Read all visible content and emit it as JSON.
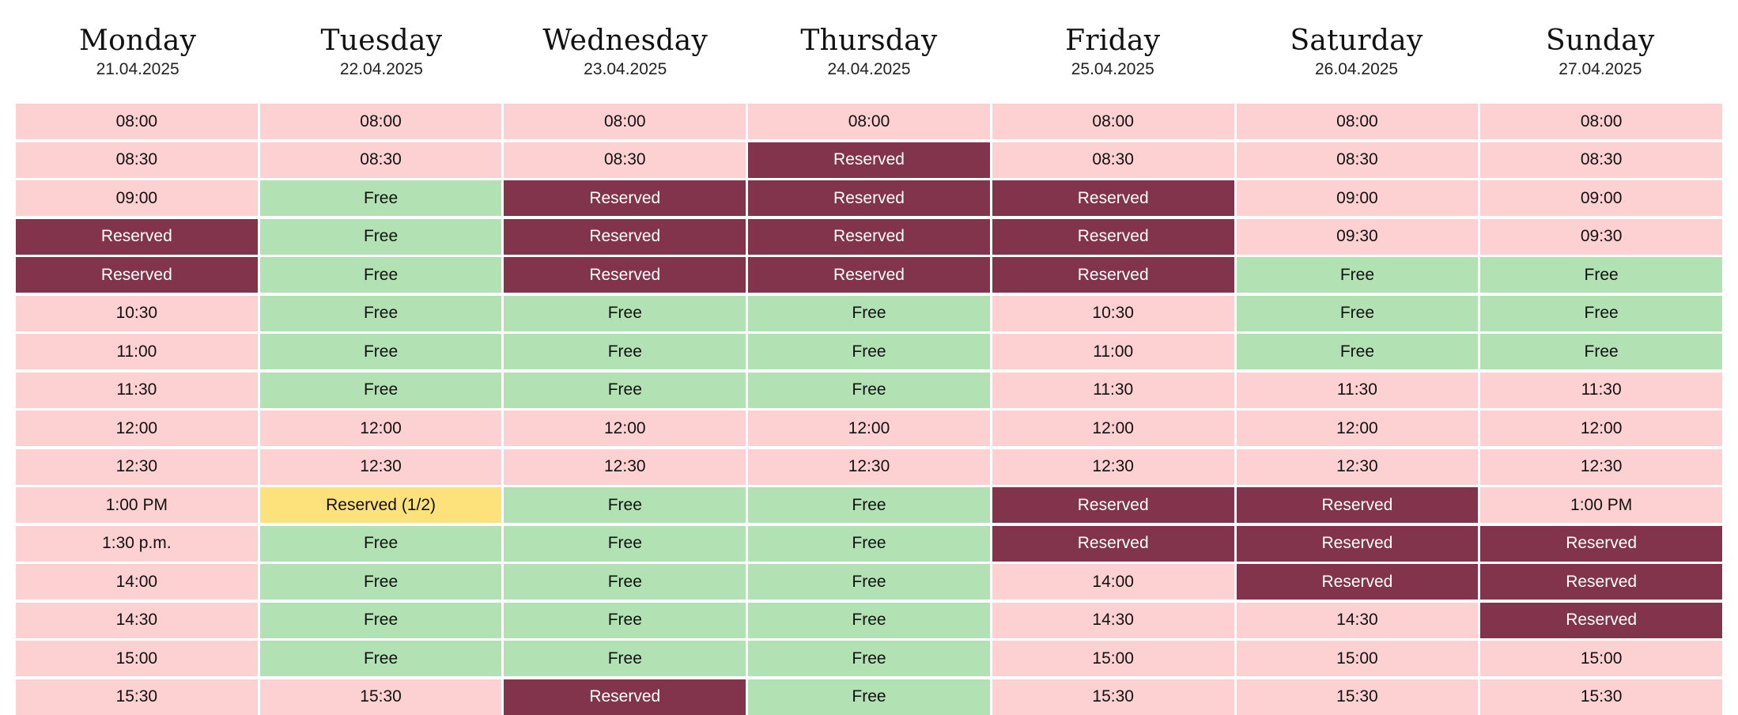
{
  "days": [
    {
      "name": "Monday",
      "date": "21.04.2025",
      "slots": [
        {
          "label": "08:00",
          "status": "open"
        },
        {
          "label": "08:30",
          "status": "open"
        },
        {
          "label": "09:00",
          "status": "open"
        },
        {
          "label": "Reserved",
          "status": "reserved"
        },
        {
          "label": "Reserved",
          "status": "reserved"
        },
        {
          "label": "10:30",
          "status": "open"
        },
        {
          "label": "11:00",
          "status": "open"
        },
        {
          "label": "11:30",
          "status": "open"
        },
        {
          "label": "12:00",
          "status": "open"
        },
        {
          "label": "12:30",
          "status": "open"
        },
        {
          "label": "1:00 PM",
          "status": "open"
        },
        {
          "label": "1:30 p.m.",
          "status": "open"
        },
        {
          "label": "14:00",
          "status": "open"
        },
        {
          "label": "14:30",
          "status": "open"
        },
        {
          "label": "15:00",
          "status": "open"
        },
        {
          "label": "15:30",
          "status": "open"
        }
      ]
    },
    {
      "name": "Tuesday",
      "date": "22.04.2025",
      "slots": [
        {
          "label": "08:00",
          "status": "open"
        },
        {
          "label": "08:30",
          "status": "open"
        },
        {
          "label": "Free",
          "status": "free"
        },
        {
          "label": "Free",
          "status": "free"
        },
        {
          "label": "Free",
          "status": "free"
        },
        {
          "label": "Free",
          "status": "free"
        },
        {
          "label": "Free",
          "status": "free"
        },
        {
          "label": "Free",
          "status": "free"
        },
        {
          "label": "12:00",
          "status": "open"
        },
        {
          "label": "12:30",
          "status": "open"
        },
        {
          "label": "Reserved (1/2)",
          "status": "partial"
        },
        {
          "label": "Free",
          "status": "free"
        },
        {
          "label": "Free",
          "status": "free"
        },
        {
          "label": "Free",
          "status": "free"
        },
        {
          "label": "Free",
          "status": "free"
        },
        {
          "label": "15:30",
          "status": "open"
        }
      ]
    },
    {
      "name": "Wednesday",
      "date": "23.04.2025",
      "slots": [
        {
          "label": "08:00",
          "status": "open"
        },
        {
          "label": "08:30",
          "status": "open"
        },
        {
          "label": "Reserved",
          "status": "reserved"
        },
        {
          "label": "Reserved",
          "status": "reserved"
        },
        {
          "label": "Reserved",
          "status": "reserved"
        },
        {
          "label": "Free",
          "status": "free"
        },
        {
          "label": "Free",
          "status": "free"
        },
        {
          "label": "Free",
          "status": "free"
        },
        {
          "label": "12:00",
          "status": "open"
        },
        {
          "label": "12:30",
          "status": "open"
        },
        {
          "label": "Free",
          "status": "free"
        },
        {
          "label": "Free",
          "status": "free"
        },
        {
          "label": "Free",
          "status": "free"
        },
        {
          "label": "Free",
          "status": "free"
        },
        {
          "label": "Free",
          "status": "free"
        },
        {
          "label": "Reserved",
          "status": "reserved"
        }
      ]
    },
    {
      "name": "Thursday",
      "date": "24.04.2025",
      "slots": [
        {
          "label": "08:00",
          "status": "open"
        },
        {
          "label": "Reserved",
          "status": "reserved"
        },
        {
          "label": "Reserved",
          "status": "reserved"
        },
        {
          "label": "Reserved",
          "status": "reserved"
        },
        {
          "label": "Reserved",
          "status": "reserved"
        },
        {
          "label": "Free",
          "status": "free"
        },
        {
          "label": "Free",
          "status": "free"
        },
        {
          "label": "Free",
          "status": "free"
        },
        {
          "label": "12:00",
          "status": "open"
        },
        {
          "label": "12:30",
          "status": "open"
        },
        {
          "label": "Free",
          "status": "free"
        },
        {
          "label": "Free",
          "status": "free"
        },
        {
          "label": "Free",
          "status": "free"
        },
        {
          "label": "Free",
          "status": "free"
        },
        {
          "label": "Free",
          "status": "free"
        },
        {
          "label": "Free",
          "status": "free"
        }
      ]
    },
    {
      "name": "Friday",
      "date": "25.04.2025",
      "slots": [
        {
          "label": "08:00",
          "status": "open"
        },
        {
          "label": "08:30",
          "status": "open"
        },
        {
          "label": "Reserved",
          "status": "reserved"
        },
        {
          "label": "Reserved",
          "status": "reserved"
        },
        {
          "label": "Reserved",
          "status": "reserved"
        },
        {
          "label": "10:30",
          "status": "open"
        },
        {
          "label": "11:00",
          "status": "open"
        },
        {
          "label": "11:30",
          "status": "open"
        },
        {
          "label": "12:00",
          "status": "open"
        },
        {
          "label": "12:30",
          "status": "open"
        },
        {
          "label": "Reserved",
          "status": "reserved"
        },
        {
          "label": "Reserved",
          "status": "reserved"
        },
        {
          "label": "14:00",
          "status": "open"
        },
        {
          "label": "14:30",
          "status": "open"
        },
        {
          "label": "15:00",
          "status": "open"
        },
        {
          "label": "15:30",
          "status": "open"
        }
      ]
    },
    {
      "name": "Saturday",
      "date": "26.04.2025",
      "slots": [
        {
          "label": "08:00",
          "status": "open"
        },
        {
          "label": "08:30",
          "status": "open"
        },
        {
          "label": "09:00",
          "status": "open"
        },
        {
          "label": "09:30",
          "status": "open"
        },
        {
          "label": "Free",
          "status": "free"
        },
        {
          "label": "Free",
          "status": "free"
        },
        {
          "label": "Free",
          "status": "free"
        },
        {
          "label": "11:30",
          "status": "open"
        },
        {
          "label": "12:00",
          "status": "open"
        },
        {
          "label": "12:30",
          "status": "open"
        },
        {
          "label": "Reserved",
          "status": "reserved"
        },
        {
          "label": "Reserved",
          "status": "reserved"
        },
        {
          "label": "Reserved",
          "status": "reserved"
        },
        {
          "label": "14:30",
          "status": "open"
        },
        {
          "label": "15:00",
          "status": "open"
        },
        {
          "label": "15:30",
          "status": "open"
        }
      ]
    },
    {
      "name": "Sunday",
      "date": "27.04.2025",
      "slots": [
        {
          "label": "08:00",
          "status": "open"
        },
        {
          "label": "08:30",
          "status": "open"
        },
        {
          "label": "09:00",
          "status": "open"
        },
        {
          "label": "09:30",
          "status": "open"
        },
        {
          "label": "Free",
          "status": "free"
        },
        {
          "label": "Free",
          "status": "free"
        },
        {
          "label": "Free",
          "status": "free"
        },
        {
          "label": "11:30",
          "status": "open"
        },
        {
          "label": "12:00",
          "status": "open"
        },
        {
          "label": "12:30",
          "status": "open"
        },
        {
          "label": "1:00 PM",
          "status": "open"
        },
        {
          "label": "Reserved",
          "status": "reserved"
        },
        {
          "label": "Reserved",
          "status": "reserved"
        },
        {
          "label": "Reserved",
          "status": "reserved"
        },
        {
          "label": "15:00",
          "status": "open"
        },
        {
          "label": "15:30",
          "status": "open"
        }
      ]
    }
  ],
  "colors": {
    "open": "#fdd1d2",
    "free": "#b2e2b3",
    "reserved": "#81344b",
    "partial": "#fde17b"
  }
}
